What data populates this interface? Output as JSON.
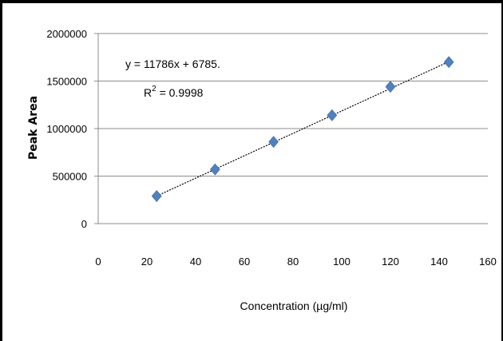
{
  "chart_data": {
    "type": "scatter",
    "title": "",
    "xlabel": "Concentration (µg/ml)",
    "ylabel": "Peak Area",
    "xlim": [
      0,
      160
    ],
    "ylim": [
      0,
      2000000
    ],
    "x_ticks": [
      "0",
      "20",
      "40",
      "60",
      "80",
      "100",
      "120",
      "140",
      "160"
    ],
    "y_ticks": [
      "0",
      "500000",
      "1000000",
      "1500000",
      "2000000"
    ],
    "grid": "horizontal",
    "legend": "none",
    "marker": "diamond",
    "marker_color": "#4f81bd",
    "series": [
      {
        "x": [
          24,
          48,
          72,
          96,
          120,
          144
        ],
        "y": [
          290000,
          570000,
          860000,
          1140000,
          1440000,
          1700000
        ]
      }
    ],
    "trendline": {
      "type": "linear",
      "slope": 11786,
      "intercept": 6785,
      "color": "#000000",
      "style": "dotted"
    },
    "annotations": {
      "equation": "y = 11786x + 6785.",
      "r2_prefix": "R",
      "r2_sup": "2",
      "r2_value": " = 0.9998"
    }
  }
}
